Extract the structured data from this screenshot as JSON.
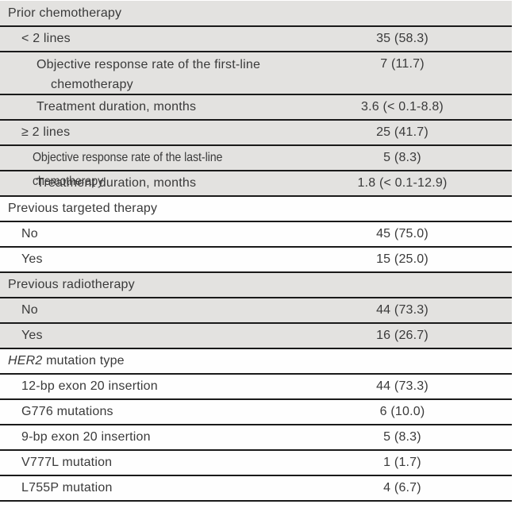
{
  "table": {
    "colors": {
      "shaded_row_bg": "#e3e2e0",
      "plain_row_bg": "#fefefe",
      "rule": "#1a1a1a",
      "text": "#3a3a3a"
    },
    "sections": [
      {
        "name": "prior-chemotherapy",
        "shaded": true,
        "rows": [
          {
            "label": "Prior chemotherapy",
            "value": "",
            "level": 0
          },
          {
            "label": "< 2 lines",
            "value": "35 (58.3)",
            "level": 1
          },
          {
            "label": "Objective response rate of the first-line\nchemotherapy",
            "value": "7 (11.7)",
            "level": 2
          },
          {
            "label": "Treatment duration, months",
            "value": "3.6 (< 0.1-8.8)",
            "level": 2
          },
          {
            "label": "≥ 2 lines",
            "value": "25 (41.7)",
            "level": 1
          },
          {
            "label": "Objective response rate of the last-line chemotherapy",
            "value": "5 (8.3)",
            "level": 2
          },
          {
            "label": "Treatment duration, months",
            "value": "1.8 (< 0.1-12.9)",
            "level": 2
          }
        ]
      },
      {
        "name": "previous-targeted-therapy",
        "shaded": false,
        "rows": [
          {
            "label": "Previous targeted therapy",
            "value": "",
            "level": 0
          },
          {
            "label": "No",
            "value": "45 (75.0)",
            "level": 1
          },
          {
            "label": "Yes",
            "value": "15 (25.0)",
            "level": 1
          }
        ]
      },
      {
        "name": "previous-radiotherapy",
        "shaded": true,
        "rows": [
          {
            "label": "Previous radiotherapy",
            "value": "",
            "level": 0
          },
          {
            "label": "No",
            "value": "44 (73.3)",
            "level": 1
          },
          {
            "label": "Yes",
            "value": "16 (26.7)",
            "level": 1
          }
        ]
      },
      {
        "name": "her2-mutation-type",
        "shaded": false,
        "rows": [
          {
            "label_italic": "HER2",
            "label": " mutation type",
            "value": "",
            "level": 0
          },
          {
            "label": "12-bp exon 20 insertion",
            "value": "44 (73.3)",
            "level": 1
          },
          {
            "label": "G776 mutations",
            "value": "6 (10.0)",
            "level": 1
          },
          {
            "label": "9-bp exon 20 insertion",
            "value": "5 (8.3)",
            "level": 1
          },
          {
            "label": "V777L mutation",
            "value": "1 (1.7)",
            "level": 1
          },
          {
            "label": "L755P mutation",
            "value": "4 (6.7)",
            "level": 1
          }
        ]
      }
    ]
  }
}
